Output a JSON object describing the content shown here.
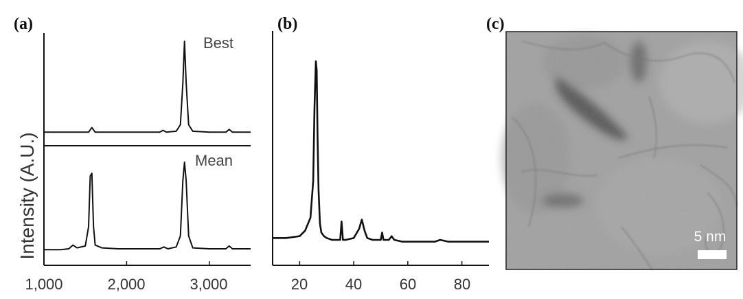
{
  "chart_data": [
    {
      "panel": "(a)",
      "type": "line",
      "ylabel": "Intensity (A.U.)",
      "xlim": [
        1000,
        3500
      ],
      "xticks": [
        "1,000",
        "2,000",
        "3,000"
      ],
      "series": [
        {
          "name": "Best",
          "x": [
            1000,
            1300,
            1350,
            1450,
            1540,
            1580,
            1620,
            1700,
            1900,
            2100,
            2400,
            2440,
            2480,
            2600,
            2650,
            2680,
            2700,
            2720,
            2750,
            2800,
            3000,
            3200,
            3240,
            3280,
            3500
          ],
          "y": [
            0.02,
            0.02,
            0.02,
            0.02,
            0.02,
            0.07,
            0.02,
            0.02,
            0.02,
            0.02,
            0.02,
            0.04,
            0.02,
            0.03,
            0.1,
            0.55,
            1.0,
            0.55,
            0.1,
            0.03,
            0.02,
            0.02,
            0.05,
            0.02,
            0.02
          ]
        },
        {
          "name": "Mean",
          "x": [
            1000,
            1200,
            1300,
            1350,
            1400,
            1500,
            1540,
            1560,
            1580,
            1600,
            1620,
            1700,
            1900,
            2100,
            2400,
            2450,
            2500,
            2600,
            2650,
            2680,
            2700,
            2720,
            2750,
            2800,
            3000,
            3200,
            3240,
            3280,
            3500
          ],
          "y": [
            0.05,
            0.05,
            0.06,
            0.1,
            0.07,
            0.09,
            0.3,
            0.85,
            0.88,
            0.3,
            0.1,
            0.07,
            0.06,
            0.06,
            0.06,
            0.08,
            0.06,
            0.08,
            0.2,
            0.8,
            1.0,
            0.8,
            0.2,
            0.07,
            0.06,
            0.06,
            0.09,
            0.06,
            0.06
          ]
        }
      ]
    },
    {
      "panel": "(b)",
      "type": "line",
      "xlim": [
        10,
        90
      ],
      "xticks": [
        "20",
        "40",
        "60",
        "80"
      ],
      "series": [
        {
          "x": [
            10,
            15,
            20,
            22,
            24,
            25,
            25.5,
            26,
            26.3,
            26.6,
            27,
            27.5,
            28,
            29,
            30,
            32,
            34,
            35,
            35.5,
            36,
            37,
            40,
            42,
            43,
            43.5,
            44,
            45,
            47,
            50,
            50.5,
            51,
            53,
            54,
            55,
            58,
            60,
            65,
            70,
            72,
            75,
            78,
            80,
            85,
            90
          ],
          "y": [
            0.04,
            0.04,
            0.05,
            0.08,
            0.15,
            0.35,
            0.75,
            1.0,
            0.95,
            0.6,
            0.3,
            0.12,
            0.07,
            0.05,
            0.04,
            0.03,
            0.03,
            0.03,
            0.13,
            0.03,
            0.03,
            0.04,
            0.09,
            0.14,
            0.11,
            0.08,
            0.04,
            0.03,
            0.03,
            0.07,
            0.03,
            0.03,
            0.05,
            0.03,
            0.02,
            0.02,
            0.02,
            0.02,
            0.03,
            0.02,
            0.02,
            0.02,
            0.02,
            0.02
          ]
        }
      ]
    }
  ],
  "panels": {
    "a": {
      "label": "(a)"
    },
    "b": {
      "label": "(b)"
    },
    "c": {
      "label": "(c)",
      "scale_bar": "5 nm"
    }
  }
}
